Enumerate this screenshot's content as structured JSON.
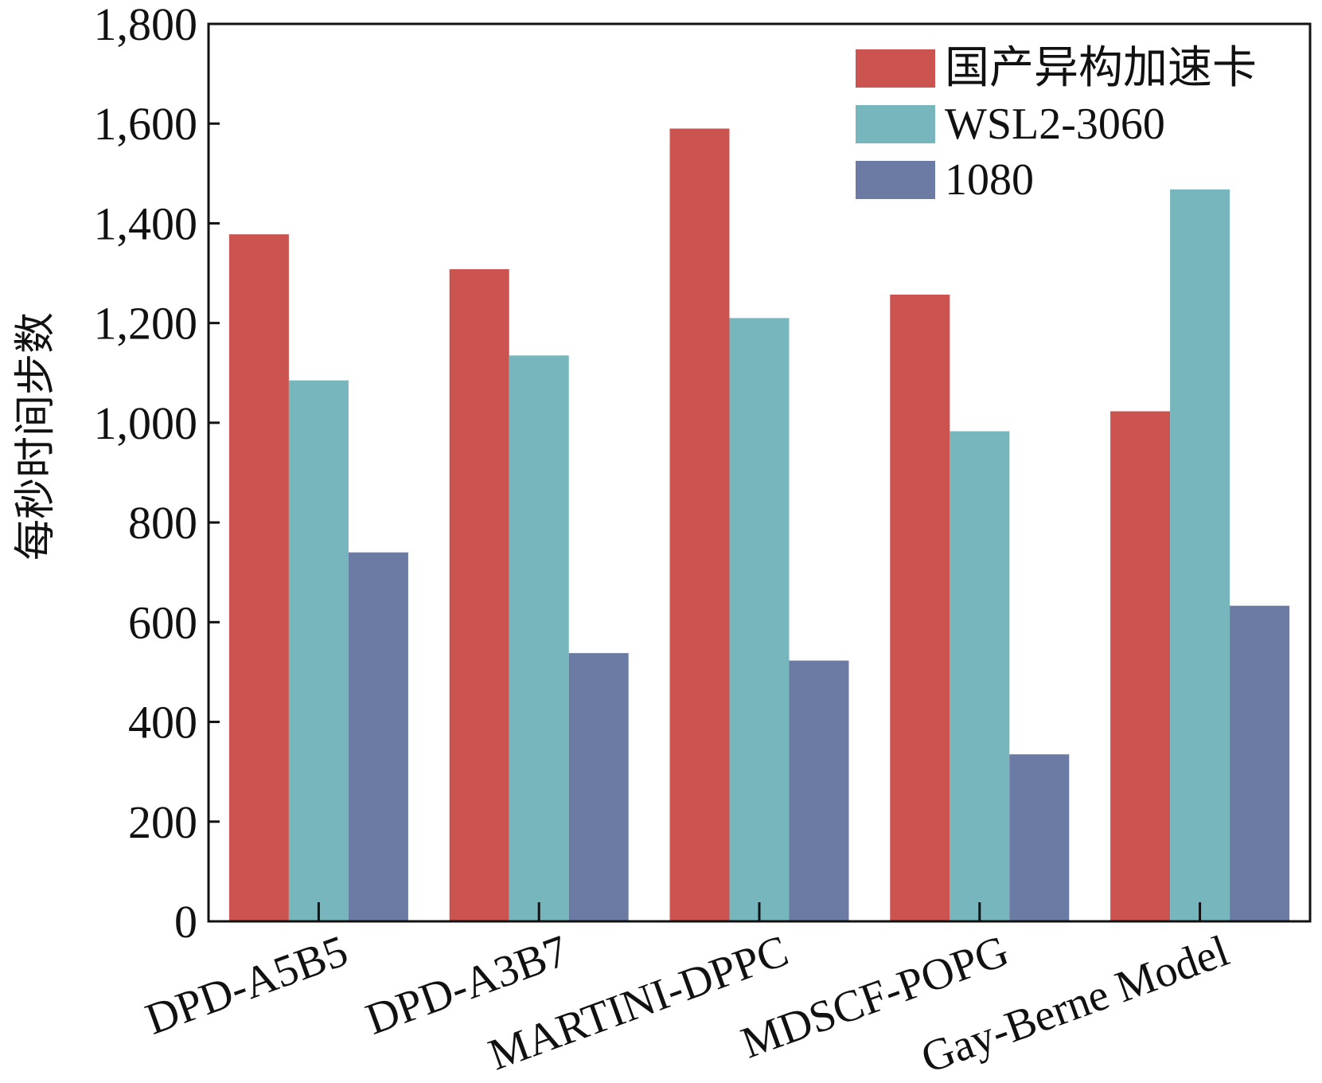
{
  "chart_data": {
    "type": "bar",
    "categories": [
      "DPD-A5B5",
      "DPD-A3B7",
      "MARTINI-DPPC",
      "MDSCF-POPG",
      "Gay-Berne Model"
    ],
    "series": [
      {
        "name": "国产异构加速卡",
        "color": "#cc5450",
        "values": [
          1378,
          1308,
          1590,
          1257,
          1023
        ]
      },
      {
        "name": "WSL2-3060",
        "color": "#78b6bd",
        "values": [
          1085,
          1135,
          1210,
          983,
          1468
        ]
      },
      {
        "name": "1080",
        "color": "#6c7ba3",
        "values": [
          740,
          538,
          523,
          335,
          633
        ]
      }
    ],
    "title": "",
    "xlabel": "",
    "ylabel": "每秒时间步数",
    "ylim": [
      0,
      1800
    ],
    "yticks": [
      0,
      200,
      400,
      600,
      800,
      1000,
      1200,
      1400,
      1600,
      1800
    ],
    "ytick_labels": [
      "0",
      "200",
      "400",
      "600",
      "800",
      "1,000",
      "1,200",
      "1,400",
      "1,600",
      "1,800"
    ],
    "legend_position": "top-right",
    "grid": false
  }
}
